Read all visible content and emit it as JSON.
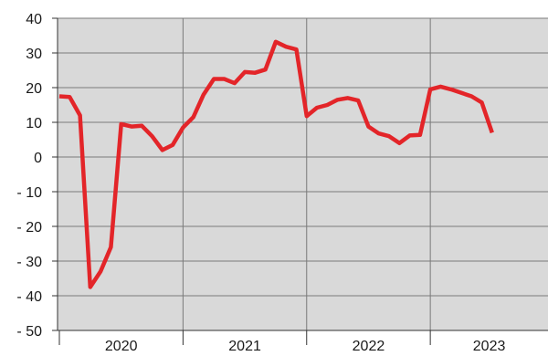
{
  "chart_data": {
    "type": "line",
    "title": "",
    "xlabel": "",
    "ylabel": "",
    "ylim": [
      -50,
      40
    ],
    "y_ticks": [
      40,
      30,
      20,
      10,
      0,
      -10,
      -20,
      -30,
      -40,
      -50
    ],
    "y_tick_labels": [
      "40",
      "30",
      "20",
      "10",
      "0",
      "- 10",
      "- 20",
      "- 30",
      "- 40",
      "- 50"
    ],
    "x_range": [
      "2020-01-01",
      "2023-12-31"
    ],
    "x_tick_labels": [
      "2020",
      "2021",
      "2022",
      "2023"
    ],
    "grid": true,
    "series": [
      {
        "color": "#e32529",
        "points": [
          {
            "x": "2020-01",
            "y": 17.5
          },
          {
            "x": "2020-02",
            "y": 17.3
          },
          {
            "x": "2020-03",
            "y": 12
          },
          {
            "x": "2020-04",
            "y": -37.5
          },
          {
            "x": "2020-05",
            "y": -33
          },
          {
            "x": "2020-06",
            "y": -26
          },
          {
            "x": "2020-07",
            "y": 9.5
          },
          {
            "x": "2020-08",
            "y": 8.8
          },
          {
            "x": "2020-09",
            "y": 9
          },
          {
            "x": "2020-10",
            "y": 6
          },
          {
            "x": "2020-11",
            "y": 2
          },
          {
            "x": "2020-12",
            "y": 3.5
          },
          {
            "x": "2021-01",
            "y": 8.5
          },
          {
            "x": "2021-02",
            "y": 11.5
          },
          {
            "x": "2021-03",
            "y": 18
          },
          {
            "x": "2021-04",
            "y": 22.5
          },
          {
            "x": "2021-05",
            "y": 22.5
          },
          {
            "x": "2021-06",
            "y": 21.3
          },
          {
            "x": "2021-07",
            "y": 24.5
          },
          {
            "x": "2021-08",
            "y": 24.3
          },
          {
            "x": "2021-09",
            "y": 25.2
          },
          {
            "x": "2021-10",
            "y": 33.2
          },
          {
            "x": "2021-11",
            "y": 31.8
          },
          {
            "x": "2021-12",
            "y": 31
          },
          {
            "x": "2022-01",
            "y": 11.8
          },
          {
            "x": "2022-02",
            "y": 14.2
          },
          {
            "x": "2022-03",
            "y": 15
          },
          {
            "x": "2022-04",
            "y": 16.5
          },
          {
            "x": "2022-05",
            "y": 17
          },
          {
            "x": "2022-06",
            "y": 16.3
          },
          {
            "x": "2022-07",
            "y": 8.8
          },
          {
            "x": "2022-08",
            "y": 6.8
          },
          {
            "x": "2022-09",
            "y": 6
          },
          {
            "x": "2022-10",
            "y": 4
          },
          {
            "x": "2022-11",
            "y": 6.2
          },
          {
            "x": "2022-12",
            "y": 6.4
          },
          {
            "x": "2023-01",
            "y": 19.5
          },
          {
            "x": "2023-02",
            "y": 20.3
          },
          {
            "x": "2023-03",
            "y": 19.5
          },
          {
            "x": "2023-05",
            "y": 17.5
          },
          {
            "x": "2023-06",
            "y": 15.7
          },
          {
            "x": "2023-07",
            "y": 7
          }
        ]
      }
    ]
  },
  "colors": {
    "plot_background": "#d9d9d9",
    "grid": "#7a7a7a",
    "line": "#e32529"
  }
}
